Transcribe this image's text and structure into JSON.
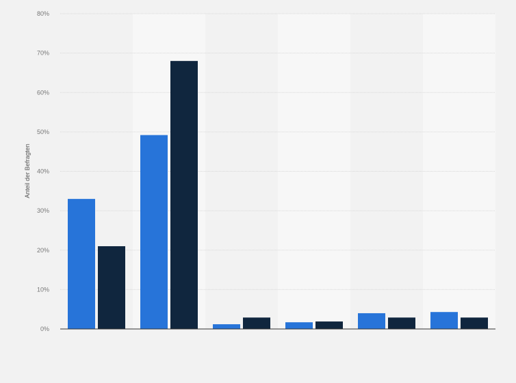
{
  "chart_data": {
    "type": "bar",
    "ylabel": "Anteil der Befragten",
    "ylim": [
      0,
      80
    ],
    "yticks": [
      "0%",
      "10%",
      "20%",
      "30%",
      "40%",
      "50%",
      "60%",
      "70%",
      "80%"
    ],
    "grid": true,
    "categories": [
      "",
      "",
      "",
      "",
      "",
      ""
    ],
    "series": [
      {
        "color": "#2774d9",
        "values": [
          33,
          49.2,
          1.2,
          1.7,
          4.0,
          4.3
        ]
      },
      {
        "color": "#10263e",
        "values": [
          21,
          68,
          2.9,
          1.9,
          2.9,
          2.9
        ]
      }
    ]
  }
}
